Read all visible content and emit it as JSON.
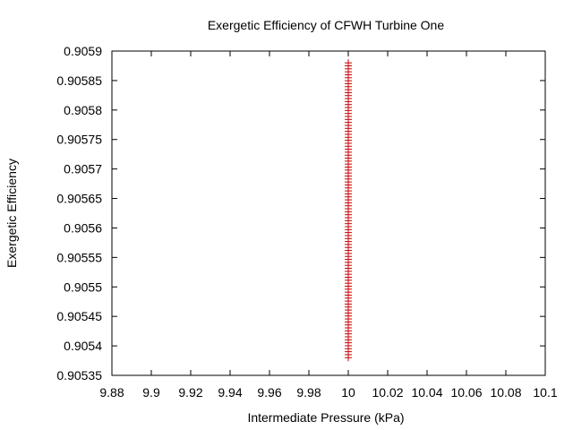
{
  "chart_data": {
    "type": "scatter",
    "title": "Exergetic Efficiency of CFWH Turbine One",
    "xlabel": "Intermediate Pressure (kPa)",
    "ylabel": "Exergetic Efficiency",
    "xlim": [
      9.88,
      10.1
    ],
    "ylim": [
      0.90535,
      0.9059
    ],
    "xticks": [
      "9.88",
      "9.9",
      "9.92",
      "9.94",
      "9.96",
      "9.98",
      "10",
      "10.02",
      "10.04",
      "10.06",
      "10.08",
      "10.1"
    ],
    "yticks": [
      "0.90535",
      "0.9054",
      "0.90545",
      "0.9055",
      "0.90555",
      "0.9056",
      "0.90565",
      "0.9057",
      "0.90575",
      "0.9058",
      "0.90585",
      "0.9059"
    ],
    "grid": false,
    "marker": "+",
    "series": [
      {
        "color": "#cc0000",
        "x_constant": 10,
        "y_start": 0.90538,
        "y_end": 0.90588,
        "point_count": 100
      }
    ]
  }
}
